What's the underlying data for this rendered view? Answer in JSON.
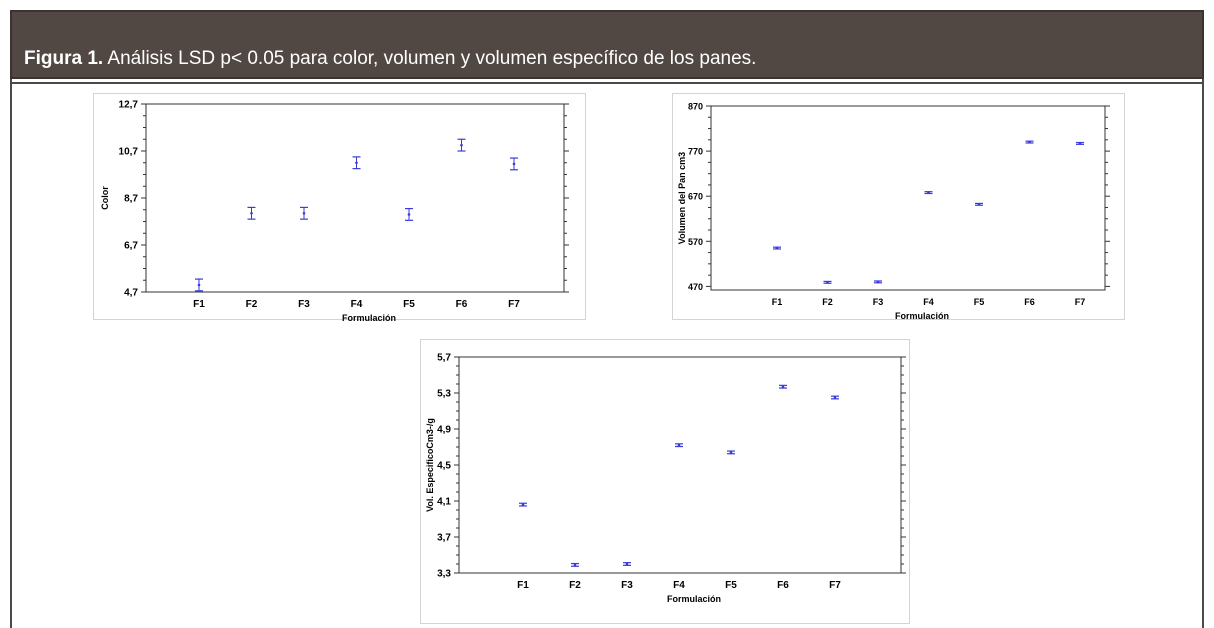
{
  "figure": {
    "caption_label": "Figura 1.",
    "caption_text": " Análisis LSD p< 0.05 para color, volumen y volumen específico de los panes."
  },
  "colors": {
    "banner_background": "#514843",
    "banner_text": "#ffffff",
    "marker": "#3a3ad8"
  },
  "chart_data": [
    {
      "type": "scatter",
      "title": "",
      "xlabel": "Formulación",
      "ylabel": "Color",
      "categories": [
        "F1",
        "F2",
        "F3",
        "F4",
        "F5",
        "F6",
        "F7"
      ],
      "ylim": [
        4.7,
        12.7
      ],
      "yticks": [
        4.7,
        6.7,
        8.7,
        10.7,
        12.7
      ],
      "ytick_labels": [
        "4,7",
        "6,7",
        "8,7",
        "10,7",
        "12,7"
      ],
      "series": [
        {
          "means": [
            5.0,
            8.05,
            8.05,
            10.2,
            8.0,
            10.95,
            10.15
          ],
          "lower": [
            4.75,
            7.8,
            7.8,
            9.95,
            7.75,
            10.7,
            9.9
          ],
          "upper": [
            5.25,
            8.3,
            8.3,
            10.45,
            8.25,
            11.2,
            10.4
          ]
        }
      ],
      "grid": false,
      "error_bars": "LSD intervals"
    },
    {
      "type": "scatter",
      "title": "",
      "xlabel": "Formulación",
      "ylabel": "Volumen del Pan  cm3",
      "categories": [
        "F1",
        "F2",
        "F3",
        "F4",
        "F5",
        "F6",
        "F7"
      ],
      "ylim": [
        462,
        870
      ],
      "yticks": [
        470,
        570,
        670,
        770,
        870
      ],
      "ytick_labels": [
        "470",
        "570",
        "670",
        "770",
        "870"
      ],
      "series": [
        {
          "means": [
            555,
            479,
            480,
            678,
            652,
            790,
            787
          ],
          "lower": [
            553,
            477,
            478,
            676,
            650,
            788,
            785
          ],
          "upper": [
            557,
            481,
            482,
            680,
            654,
            792,
            789
          ]
        }
      ],
      "grid": false,
      "error_bars": "LSD intervals"
    },
    {
      "type": "scatter",
      "title": "",
      "xlabel": "Formulación",
      "ylabel": "Vol. EspecificoCm3-/g",
      "categories": [
        "F1",
        "F2",
        "F3",
        "F4",
        "F5",
        "F6",
        "F7"
      ],
      "ylim": [
        3.3,
        5.7
      ],
      "yticks": [
        3.3,
        3.7,
        4.1,
        4.5,
        4.9,
        5.3,
        5.7
      ],
      "ytick_labels": [
        "3,3",
        "3,7",
        "4,1",
        "4,5",
        "4,9",
        "5,3",
        "5,7"
      ],
      "series": [
        {
          "means": [
            4.06,
            3.39,
            3.4,
            4.72,
            4.64,
            5.37,
            5.25
          ],
          "lower": [
            4.045,
            3.375,
            3.385,
            4.705,
            4.625,
            5.355,
            5.235
          ],
          "upper": [
            4.075,
            3.405,
            3.415,
            4.735,
            4.655,
            5.385,
            5.265
          ]
        }
      ],
      "grid": false,
      "error_bars": "LSD intervals"
    }
  ]
}
